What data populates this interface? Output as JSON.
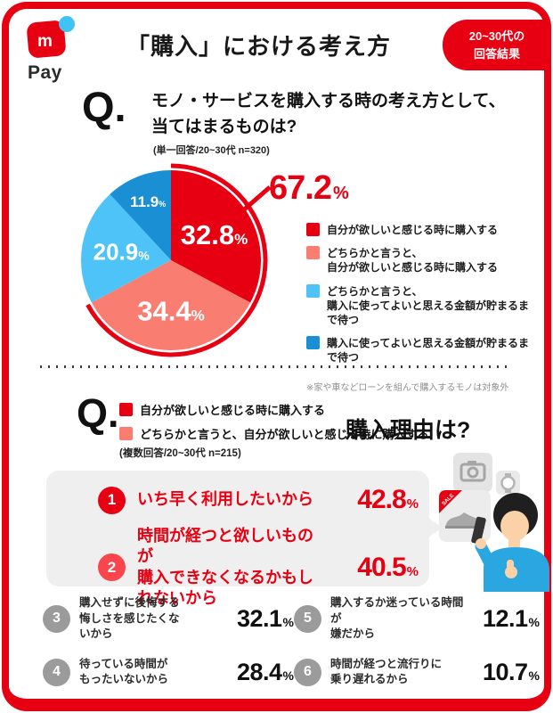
{
  "colors": {
    "brand_red": "#e60012",
    "salmon": "#f97d70",
    "light_blue": "#4ec3f7",
    "dark_blue": "#1b8fd4",
    "rank2_red": "#f9464c",
    "gray_circle": "#9b9b9b",
    "sweater_blue": "#2aa7e0"
  },
  "logo": {
    "mark_letter": "m",
    "text": "Pay"
  },
  "header": {
    "title": "「購入」における考え方",
    "badge": [
      "20~30代の",
      "回答結果"
    ]
  },
  "q1": {
    "mark": "Q.",
    "line1": "モノ・サービスを購入する時の考え方として、",
    "line2": "当てはまるものは?",
    "note": "(単一回答/20~30代 n=320)"
  },
  "chart_data": {
    "type": "pie",
    "title": "モノ・サービスを購入する時の考え方として、当てはまるものは?",
    "unit": "%",
    "start_angle_deg": 0,
    "direction": "clockwise",
    "slices": [
      {
        "label": "自分が欲しいと感じる時に購入する",
        "value": 32.8,
        "color": "#e60012"
      },
      {
        "label": "どちらかと言うと、\n自分が欲しいと感じる時に購入する",
        "value": 34.4,
        "color": "#f97d70"
      },
      {
        "label": "どちらかと言うと、\n購入に使ってよいと思える金額が貯まるまで待つ",
        "value": 20.9,
        "color": "#4ec3f7"
      },
      {
        "label": "購入に使ってよいと思える金額が貯まるまで待つ",
        "value": 11.9,
        "color": "#1b8fd4"
      }
    ],
    "highlight_total": {
      "display": "67.2",
      "unit": "%",
      "value": 67.2,
      "covers_slices": [
        0,
        1
      ]
    },
    "footnote": "※家や車などローンを組んで購入するモノは対象外"
  },
  "q2": {
    "mark": "Q.",
    "legend": [
      {
        "label": "自分が欲しいと感じる時に購入する",
        "color": "#e60012"
      },
      {
        "label": "どちらかと言うと、自分が欲しいと感じる時に購入する",
        "color": "#f97d70"
      }
    ],
    "title": "購入理由は?",
    "note": "(複数回答/20~30代 n=215)"
  },
  "reasons": {
    "unit": "%",
    "top": [
      {
        "rank": "1",
        "lines": [
          "いち早く利用したいから"
        ],
        "value": "42.8",
        "circle_color": "#e60012"
      },
      {
        "rank": "2",
        "lines": [
          "時間が経つと欲しいものが",
          "購入できなくなるかもしれないから"
        ],
        "value": "40.5",
        "circle_color": "#f9464c"
      }
    ],
    "others": [
      {
        "rank": "3",
        "lines": [
          "購入せずに後悔する",
          "悔しさを感じたくないから"
        ],
        "value": "32.1"
      },
      {
        "rank": "4",
        "lines": [
          "待っている時間が",
          "もったいないから"
        ],
        "value": "28.4"
      },
      {
        "rank": "5",
        "lines": [
          "購入するか迷っている時間が",
          "嫌だから"
        ],
        "value": "12.1"
      },
      {
        "rank": "6",
        "lines": [
          "時間が経つと流行りに",
          "乗り遅れるから"
        ],
        "value": "10.7"
      }
    ]
  },
  "illustration": {
    "icons": [
      "camera-icon",
      "watch-icon",
      "sneaker-icon",
      "sale-tag"
    ],
    "person": "person-holding-phone"
  }
}
